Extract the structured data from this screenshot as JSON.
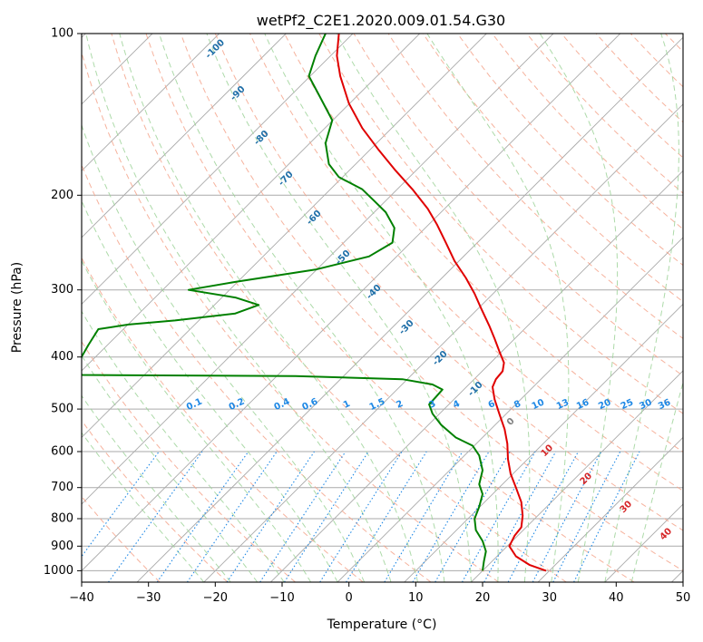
{
  "chart_data": {
    "type": "line",
    "title": "wetPf2_C2E1.2020.009.01.54.G30",
    "xlabel": "Temperature (°C)",
    "ylabel": "Pressure (hPa)",
    "xlim": [
      -40,
      50
    ],
    "ylim": [
      1050,
      100
    ],
    "y_scale": "log",
    "grid": true,
    "x_ticks": [
      -40,
      -30,
      -20,
      -10,
      0,
      10,
      20,
      30,
      40,
      50
    ],
    "y_ticks": [
      100,
      200,
      300,
      400,
      500,
      600,
      700,
      800,
      900,
      1000
    ],
    "series": [
      {
        "color": "#e00000",
        "points": [
          [
            -1.5,
            100
          ],
          [
            -1.8,
            110
          ],
          [
            -1.3,
            120
          ],
          [
            0.0,
            135
          ],
          [
            2.0,
            150
          ],
          [
            4.5,
            165
          ],
          [
            7.0,
            180
          ],
          [
            9.5,
            195
          ],
          [
            11.8,
            212
          ],
          [
            13.2,
            227
          ],
          [
            14.5,
            245
          ],
          [
            15.8,
            265
          ],
          [
            17.5,
            285
          ],
          [
            18.8,
            305
          ],
          [
            19.8,
            325
          ],
          [
            21.0,
            350
          ],
          [
            21.8,
            370
          ],
          [
            22.5,
            390
          ],
          [
            23.2,
            410
          ],
          [
            23.0,
            425
          ],
          [
            22.0,
            440
          ],
          [
            21.5,
            455
          ],
          [
            21.8,
            480
          ],
          [
            22.5,
            510
          ],
          [
            23.3,
            545
          ],
          [
            23.7,
            580
          ],
          [
            23.8,
            620
          ],
          [
            24.2,
            660
          ],
          [
            25.0,
            700
          ],
          [
            25.8,
            745
          ],
          [
            26.0,
            790
          ],
          [
            25.8,
            830
          ],
          [
            24.8,
            860
          ],
          [
            24.0,
            900
          ],
          [
            25.0,
            940
          ],
          [
            27.0,
            975
          ],
          [
            29.5,
            1000
          ]
        ]
      },
      {
        "color": "#008000",
        "points": [
          [
            -3.5,
            100
          ],
          [
            -5.0,
            110
          ],
          [
            -6.0,
            120
          ],
          [
            -4.5,
            130
          ],
          [
            -2.5,
            145
          ],
          [
            -3.5,
            160
          ],
          [
            -3.0,
            175
          ],
          [
            -1.5,
            185
          ],
          [
            2.0,
            195
          ],
          [
            3.8,
            205
          ],
          [
            5.5,
            215
          ],
          [
            6.8,
            230
          ],
          [
            6.5,
            245
          ],
          [
            3.0,
            260
          ],
          [
            -5.0,
            275
          ],
          [
            -17.0,
            290
          ],
          [
            -24.0,
            300
          ],
          [
            -17.0,
            310
          ],
          [
            -13.5,
            320
          ],
          [
            -17.0,
            332
          ],
          [
            -26.0,
            342
          ],
          [
            -33.0,
            348
          ],
          [
            -37.5,
            355
          ],
          [
            -39.0,
            380
          ],
          [
            -40.5,
            410
          ],
          [
            -40.0,
            432
          ],
          [
            -8.0,
            434
          ],
          [
            8.0,
            440
          ],
          [
            12.5,
            450
          ],
          [
            14.0,
            460
          ],
          [
            13.0,
            475
          ],
          [
            12.0,
            490
          ],
          [
            12.5,
            510
          ],
          [
            13.8,
            535
          ],
          [
            16.0,
            565
          ],
          [
            18.5,
            585
          ],
          [
            19.5,
            610
          ],
          [
            20.0,
            650
          ],
          [
            19.5,
            690
          ],
          [
            20.0,
            720
          ],
          [
            19.5,
            760
          ],
          [
            18.8,
            800
          ],
          [
            19.0,
            840
          ],
          [
            20.0,
            880
          ],
          [
            20.5,
            920
          ],
          [
            20.2,
            960
          ],
          [
            20.0,
            1000
          ]
        ]
      }
    ],
    "dry_adiabat_labels": [
      "-100",
      "-90",
      "-80",
      "-70",
      "-60",
      "-50",
      "-40",
      "-30",
      "-20",
      "-10",
      "0",
      "10",
      "20",
      "30",
      "40"
    ],
    "mixing_ratio_labels": [
      "0.1",
      "0.2",
      "0.4",
      "0.6",
      "1",
      "1.5",
      "2",
      "3",
      "4",
      "6",
      "8",
      "10",
      "13",
      "16",
      "20",
      "25",
      "30",
      "36"
    ],
    "mixing_ratio_values": [
      0.1,
      0.2,
      0.4,
      0.6,
      1,
      1.5,
      2,
      3,
      4,
      6,
      8,
      10,
      13,
      16,
      20,
      25,
      30,
      36
    ],
    "mixing_ratio_label_pressure": 490,
    "colors": {
      "temperature": "#e00000",
      "dewpoint": "#008000",
      "isotherm": "#aaaaaa",
      "dry_adiabat": "#f4a48c",
      "moist_adiabat": "#9fd49a",
      "mixing_ratio": "#1e88e5",
      "label_blue": "#1f6fa8",
      "label_red": "#d62728",
      "label_gray": "#808080",
      "label_mixing": "#1e88e5"
    }
  }
}
